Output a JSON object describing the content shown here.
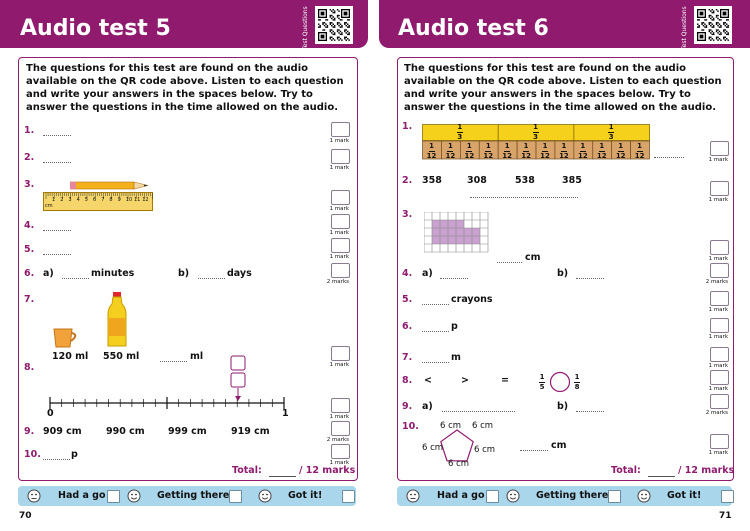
{
  "pages": [
    {
      "title": "Audio test 5",
      "side_label": "Test Questions",
      "intro": "The questions for this test are found on the audio available on the QR code above. Listen to each question and write your answers in the spaces below. Try to answer the questions in the time allowed on the audio.",
      "questions": [
        {
          "number": "1."
        },
        {
          "number": "2."
        },
        {
          "number": "3.",
          "ruler": [
            "1",
            "2",
            "3",
            "4",
            "5",
            "6",
            "7",
            "8",
            "9",
            "10",
            "11",
            "12"
          ],
          "ruler_unit": "cm"
        },
        {
          "number": "4."
        },
        {
          "number": "5."
        },
        {
          "number": "6.",
          "parts": [
            "a)",
            "b)"
          ],
          "units": [
            "minutes",
            "days"
          ]
        },
        {
          "number": "7.",
          "labels": [
            "120 ml",
            "550 ml"
          ],
          "unit": "ml"
        },
        {
          "number": "8.",
          "line_labels": [
            "0",
            "1"
          ]
        },
        {
          "number": "9.",
          "values": [
            "909 cm",
            "990 cm",
            "999 cm",
            "919 cm"
          ]
        },
        {
          "number": "10.",
          "unit": "p"
        }
      ],
      "marks": [
        "1 mark",
        "1 mark",
        "1 mark",
        "1 mark",
        "1 mark",
        "2 marks",
        "1 mark",
        "1 mark",
        "2 marks",
        "1 mark"
      ],
      "total": {
        "label": "Total:",
        "max": "/ 12 marks"
      },
      "rating": [
        "Had a go",
        "Getting there",
        "Got it!"
      ],
      "page_number": "70"
    },
    {
      "title": "Audio test 6",
      "side_label": "Test Questions",
      "intro": "The questions for this test are found on the audio available on the QR code above. Listen to each question and write your answers in the spaces below. Try to answer the questions in the time allowed on the audio.",
      "questions": [
        {
          "number": "1.",
          "thirds": [
            {
              "num": "1",
              "den": "3"
            },
            {
              "num": "1",
              "den": "3"
            },
            {
              "num": "1",
              "den": "3"
            }
          ],
          "twelfths": [
            {
              "num": "1",
              "den": "12"
            },
            {
              "num": "1",
              "den": "12"
            },
            {
              "num": "1",
              "den": "12"
            },
            {
              "num": "1",
              "den": "12"
            },
            {
              "num": "1",
              "den": "12"
            },
            {
              "num": "1",
              "den": "12"
            },
            {
              "num": "1",
              "den": "12"
            },
            {
              "num": "1",
              "den": "12"
            },
            {
              "num": "1",
              "den": "12"
            },
            {
              "num": "1",
              "den": "12"
            },
            {
              "num": "1",
              "den": "12"
            },
            {
              "num": "1",
              "den": "12"
            }
          ]
        },
        {
          "number": "2.",
          "values": [
            "358",
            "308",
            "538",
            "385"
          ]
        },
        {
          "number": "3.",
          "unit": "cm"
        },
        {
          "number": "4.",
          "parts": [
            "a)",
            "b)"
          ]
        },
        {
          "number": "5.",
          "unit": "crayons"
        },
        {
          "number": "6.",
          "unit": "p"
        },
        {
          "number": "7.",
          "unit": "m"
        },
        {
          "number": "8.",
          "symbols": [
            "<",
            ">",
            "="
          ],
          "fractions": [
            {
              "num": "1",
              "den": "5"
            },
            {
              "num": "1",
              "den": "8"
            }
          ]
        },
        {
          "number": "9.",
          "parts": [
            "a)",
            "b)"
          ]
        },
        {
          "number": "10.",
          "sides": [
            "6 cm",
            "6 cm",
            "6 cm",
            "6 cm",
            "6 cm"
          ],
          "unit": "cm"
        }
      ],
      "marks": [
        "1 mark",
        "1 mark",
        "1 mark",
        "2 marks",
        "1 mark",
        "1 mark",
        "1 mark",
        "1 mark",
        "2 marks",
        "1 mark"
      ],
      "total": {
        "label": "Total:",
        "max": "/ 12 marks"
      },
      "rating": [
        "Had a go",
        "Getting there",
        "Got it!"
      ],
      "page_number": "71"
    }
  ]
}
